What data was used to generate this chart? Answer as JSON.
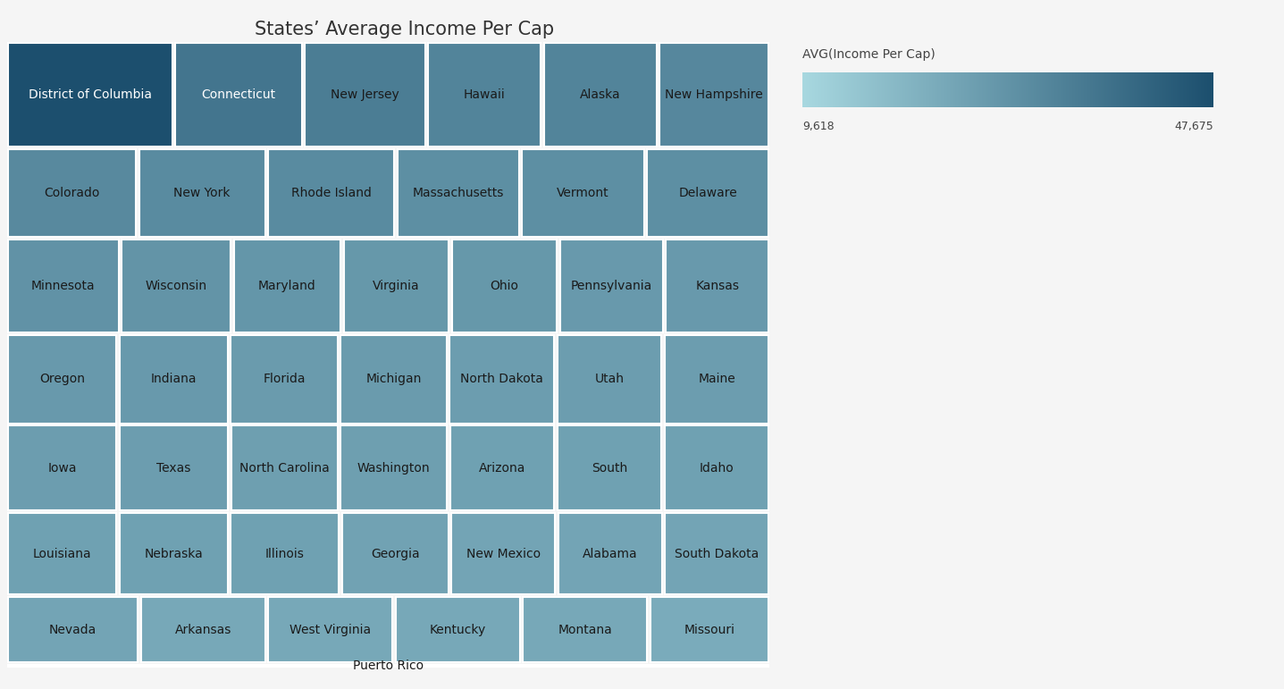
{
  "title": "States’ Average Income Per Cap",
  "legend_title": "AVG(Income Per Cap)",
  "legend_min": 9618,
  "legend_max": 47675,
  "colormap_low": "#a8d8e0",
  "colormap_high": "#1c4f6e",
  "background_color": "#f5f5f5",
  "text_color_dark": "#1a1a1a",
  "text_color_light": "white",
  "title_fontsize": 15,
  "label_fontsize_max": 10,
  "label_fontsize_min": 6,
  "border_color": "white",
  "border_linewidth": 1.5,
  "states": [
    {
      "name": "District of Columbia",
      "value": 47675
    },
    {
      "name": "Connecticut",
      "value": 37000
    },
    {
      "name": "New Jersey",
      "value": 35000
    },
    {
      "name": "Rhode Island",
      "value": 31000
    },
    {
      "name": "Massachusetts",
      "value": 30000
    },
    {
      "name": "Maryland",
      "value": 28000
    },
    {
      "name": "North Dakota",
      "value": 26000
    },
    {
      "name": "Hawaii",
      "value": 33000
    },
    {
      "name": "Colorado",
      "value": 31500
    },
    {
      "name": "Minnesota",
      "value": 29000
    },
    {
      "name": "Virginia",
      "value": 27500
    },
    {
      "name": "Iowa",
      "value": 26000
    },
    {
      "name": "Nebraska",
      "value": 25000
    },
    {
      "name": "Nevada",
      "value": 24000
    },
    {
      "name": "New Hampshire",
      "value": 32000
    },
    {
      "name": "Wisconsin",
      "value": 28500
    },
    {
      "name": "Pennsylvania",
      "value": 27000
    },
    {
      "name": "Maine",
      "value": 26000
    },
    {
      "name": "Washington",
      "value": 25500
    },
    {
      "name": "Illinois",
      "value": 25000
    },
    {
      "name": "South Dakota",
      "value": 24000
    },
    {
      "name": "Montana",
      "value": 23000
    },
    {
      "name": "Alaska",
      "value": 33000
    },
    {
      "name": "Kansas",
      "value": 27000
    },
    {
      "name": "Texas",
      "value": 26000
    },
    {
      "name": "Louisiana",
      "value": 25000
    },
    {
      "name": "New Mexico",
      "value": 24000
    },
    {
      "name": "West Virginia",
      "value": 23000
    },
    {
      "name": "Missouri",
      "value": 22000
    },
    {
      "name": "Delaware",
      "value": 30000
    },
    {
      "name": "Ohio",
      "value": 27500
    },
    {
      "name": "Florida",
      "value": 26500
    },
    {
      "name": "Idaho",
      "value": 25000
    },
    {
      "name": "Alabama",
      "value": 24000
    },
    {
      "name": "Kentucky",
      "value": 23000
    },
    {
      "name": "Vermont",
      "value": 30000
    },
    {
      "name": "Oregon",
      "value": 27000
    },
    {
      "name": "Utah",
      "value": 26000
    },
    {
      "name": "South",
      "value": 25000
    },
    {
      "name": "Georgia",
      "value": 24500
    },
    {
      "name": "Arkansas",
      "value": 23000
    },
    {
      "name": "New York",
      "value": 31000
    },
    {
      "name": "Indiana",
      "value": 27000
    },
    {
      "name": "Michigan",
      "value": 26500
    },
    {
      "name": "North Carolina",
      "value": 25500
    },
    {
      "name": "Arizona",
      "value": 25000
    },
    {
      "name": "Puerto Rico",
      "value": 9618
    }
  ]
}
